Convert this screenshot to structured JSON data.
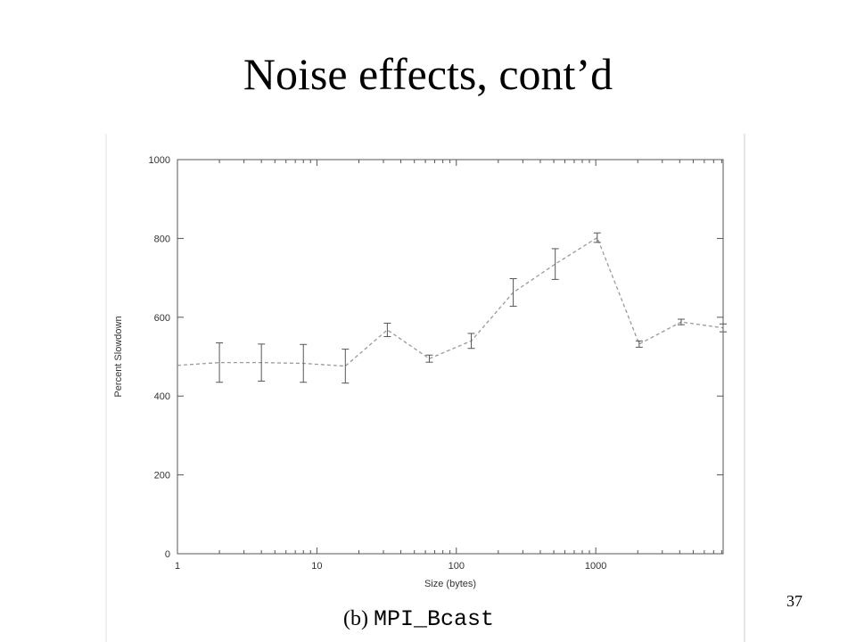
{
  "slide": {
    "title": "Noise effects, cont’d",
    "page_number": "37"
  },
  "figure": {
    "caption_label": "(b)",
    "caption_code": "MPI_Bcast"
  },
  "chart_data": {
    "type": "line",
    "title": "",
    "xlabel": "Size (bytes)",
    "ylabel": "Percent Slowdown",
    "x_scale": "log",
    "xlim": [
      1,
      8192
    ],
    "ylim": [
      0,
      1000
    ],
    "x_ticks": [
      1,
      10,
      100,
      1000
    ],
    "x_tick_labels": [
      "1",
      "10",
      "100",
      "1000"
    ],
    "y_ticks": [
      0,
      200,
      400,
      600,
      800,
      1000
    ],
    "y_tick_labels": [
      "0",
      "200",
      "400",
      "600",
      "800",
      "1000"
    ],
    "grid": false,
    "line_style": "dashed",
    "line_color": "#9a9a9a",
    "errorbar_color": "#555555",
    "series": [
      {
        "x": [
          1,
          2,
          4,
          8,
          16,
          32,
          64,
          128,
          256,
          512,
          1024,
          2048,
          4096,
          8192
        ],
        "y": [
          478,
          485,
          485,
          483,
          476,
          568,
          495,
          540,
          663,
          735,
          802,
          532,
          588,
          573
        ],
        "err": [
          0,
          50,
          47,
          48,
          43,
          17,
          9,
          19,
          35,
          39,
          12,
          8,
          7,
          10
        ]
      }
    ]
  }
}
